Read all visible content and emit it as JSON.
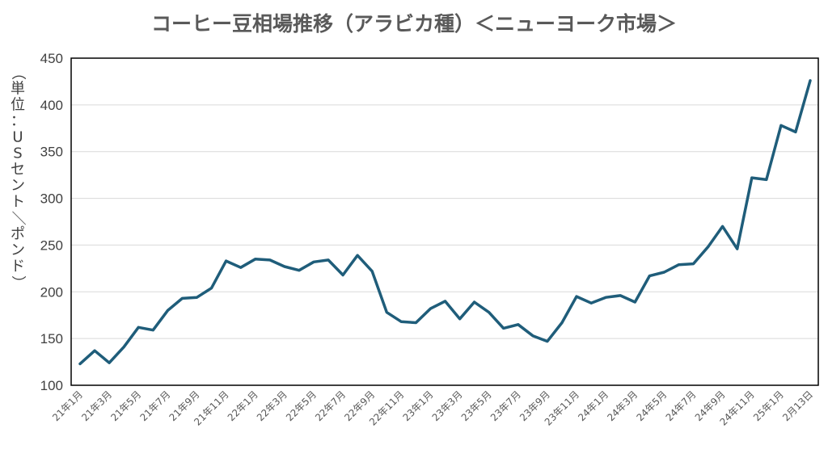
{
  "chart_data": {
    "type": "line",
    "title": "コーヒー豆相場推移（アラビカ種）＜ニューヨーク市場＞",
    "ylabel": "（単位：USセント／ポンド）",
    "xlabel": "",
    "ylim": [
      100,
      450
    ],
    "yticks": [
      100,
      150,
      200,
      250,
      300,
      350,
      400,
      450
    ],
    "grid": true,
    "legend": "none",
    "color": "#1f5d7a",
    "x_tick_labels": [
      "21年1月",
      "21年3月",
      "21年5月",
      "21年7月",
      "21年9月",
      "21年11月",
      "22年1月",
      "22年3月",
      "22年5月",
      "22年7月",
      "22年9月",
      "22年11月",
      "23年1月",
      "23年3月",
      "23年5月",
      "23年7月",
      "23年9月",
      "23年11月",
      "24年1月",
      "24年3月",
      "24年5月",
      "24年7月",
      "24年9月",
      "24年11月",
      "25年1月",
      "2月13日"
    ],
    "series": [
      {
        "name": "",
        "values": [
          123,
          137,
          124,
          141,
          162,
          159,
          180,
          193,
          194,
          204,
          233,
          226,
          235,
          234,
          227,
          223,
          232,
          234,
          218,
          239,
          222,
          178,
          168,
          167,
          182,
          190,
          171,
          189,
          178,
          161,
          165,
          153,
          147,
          167,
          195,
          188,
          194,
          196,
          189,
          217,
          221,
          229,
          230,
          248,
          270,
          246,
          322,
          320,
          378,
          371,
          426
        ]
      }
    ]
  }
}
